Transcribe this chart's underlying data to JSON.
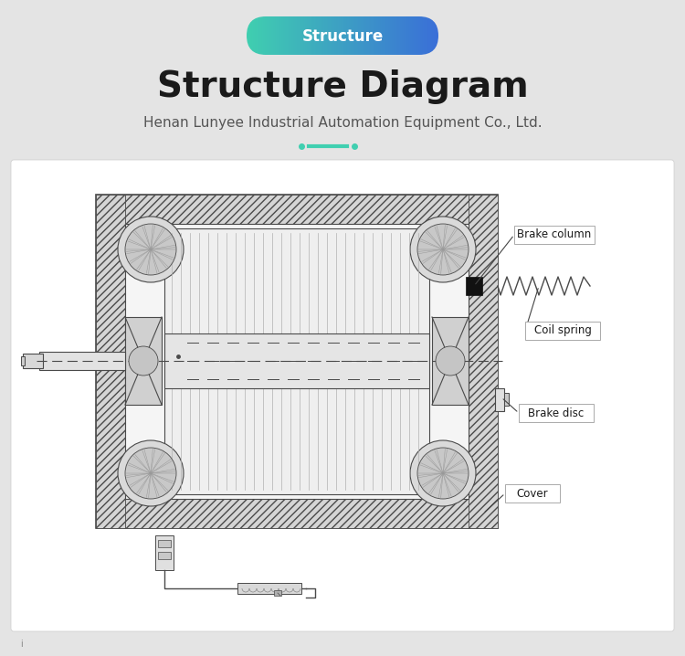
{
  "bg_color": "#e4e4e4",
  "white_bg": "#ffffff",
  "badge_text": "Structure",
  "badge_color1": "#40cfb0",
  "badge_color2": "#3a6fd8",
  "title": "Structure Diagram",
  "subtitle": "Henan Lunyee Industrial Automation Equipment Co., Ltd.",
  "labels": [
    "Brake column",
    "Coil spring",
    "Brake disc",
    "Cover"
  ],
  "divider_color": "#40cfb0",
  "line_color": "#4a4a4a",
  "label_box_color": "#ffffff",
  "label_box_border": "#aaaaaa",
  "title_fontsize": 28,
  "subtitle_fontsize": 11,
  "badge_fontsize": 12
}
